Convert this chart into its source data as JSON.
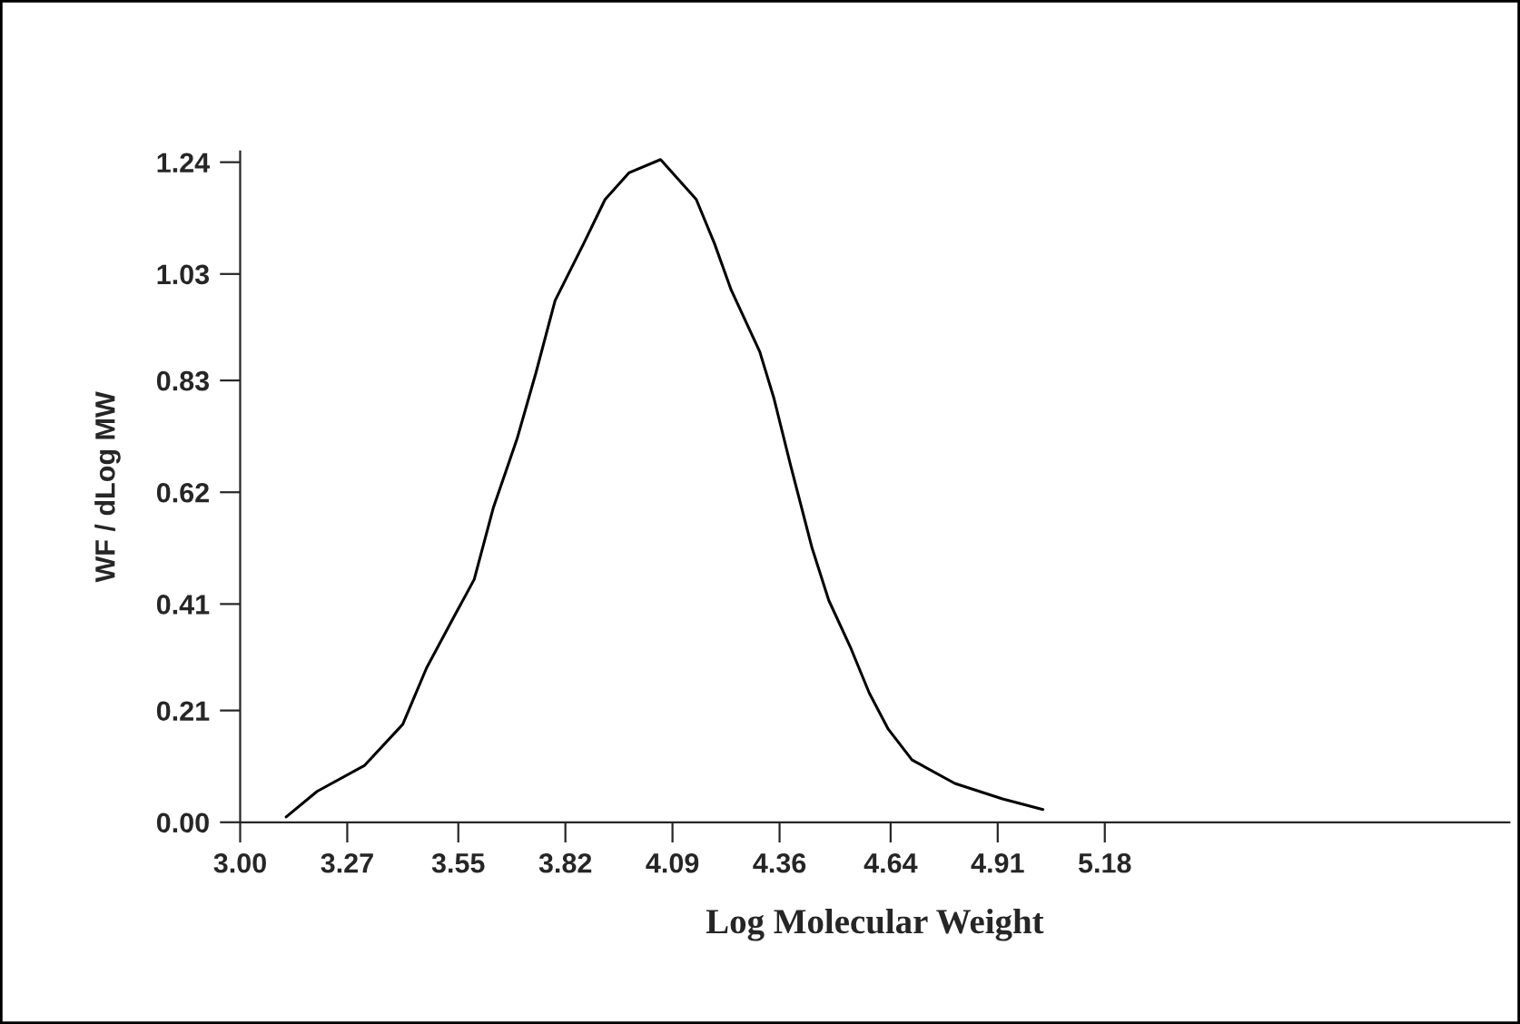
{
  "chart_data": {
    "type": "line",
    "xlabel": "Log Molecular Weight",
    "ylabel": "WF / dLog MW",
    "x": [
      3.116,
      3.194,
      3.314,
      3.41,
      3.47,
      3.542,
      3.59,
      3.638,
      3.698,
      3.746,
      3.794,
      3.866,
      3.92,
      3.98,
      4.06,
      4.15,
      4.196,
      4.238,
      4.31,
      4.346,
      4.388,
      4.442,
      4.484,
      4.538,
      4.586,
      4.634,
      4.694,
      4.802,
      4.922,
      5.024
    ],
    "values": [
      0.01,
      0.058,
      0.107,
      0.184,
      0.29,
      0.39,
      0.456,
      0.59,
      0.72,
      0.845,
      0.98,
      1.087,
      1.17,
      1.22,
      1.245,
      1.17,
      1.087,
      1.0,
      0.884,
      0.796,
      0.67,
      0.515,
      0.417,
      0.33,
      0.243,
      0.175,
      0.117,
      0.073,
      0.044,
      0.024
    ],
    "color": "#000000",
    "xlim": [
      3.0,
      6.2
    ],
    "ylim": [
      0,
      1.26
    ],
    "xticks": [
      {
        "value": 3.0,
        "label": "3.00"
      },
      3.27,
      3.55,
      3.82,
      4.09,
      4.36,
      4.64,
      4.91,
      5.18
    ],
    "yticks": [
      {
        "value": 0.0,
        "label": "0.00"
      },
      0.21,
      0.41,
      0.62,
      0.83,
      1.03,
      1.24
    ],
    "grid": false,
    "legend": false,
    "marker": "none",
    "line_style": "solid"
  }
}
